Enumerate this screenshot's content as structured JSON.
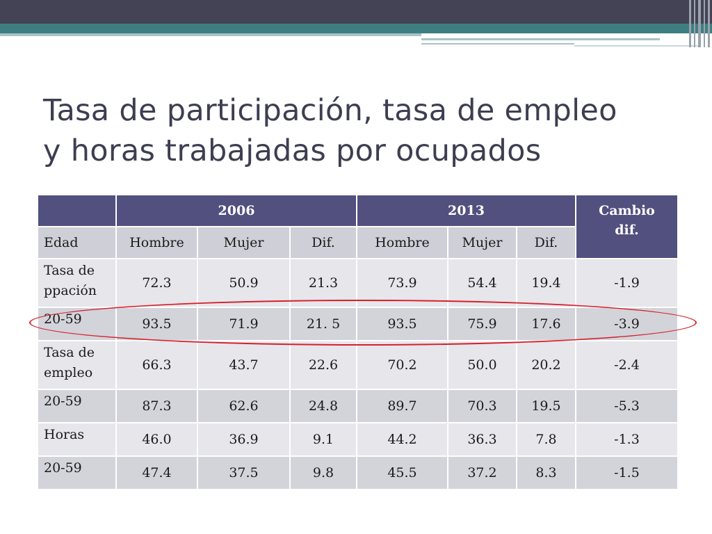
{
  "slide": {
    "title_line1": "Tasa de participación, tasa de empleo",
    "title_line2": "y horas trabajadas por ocupados"
  },
  "table": {
    "year_a": "2006",
    "year_b": "2013",
    "cambio_line1": "Cambio",
    "cambio_line2": "dif.",
    "sub": [
      "Edad",
      "Hombre",
      "Mujer",
      "Dif.",
      "Hombre",
      "Mujer",
      "Dif."
    ],
    "rows": [
      {
        "label_line1": "Tasa de",
        "label_line2": "ppación",
        "values": [
          "72.3",
          "50.9",
          "21.3",
          "73.9",
          "54.4",
          "19.4",
          "-1.9"
        ]
      },
      {
        "label_line1": "20-59",
        "label_line2": "",
        "values": [
          "93.5",
          "71.9",
          "21. 5",
          "93.5",
          "75.9",
          "17.6",
          "-3.9"
        ]
      },
      {
        "label_line1": "Tasa de",
        "label_line2": "empleo",
        "values": [
          "66.3",
          "43.7",
          "22.6",
          "70.2",
          "50.0",
          "20.2",
          "-2.4"
        ]
      },
      {
        "label_line1": "20-59",
        "label_line2": "",
        "values": [
          "87.3",
          "62.6",
          "24.8",
          "89.7",
          "70.3",
          "19.5",
          "-5.3"
        ]
      },
      {
        "label_line1": "Horas",
        "label_line2": "",
        "values": [
          "46.0",
          "36.9",
          "9.1",
          "44.2",
          "36.3",
          "7.8",
          "-1.3"
        ]
      },
      {
        "label_line1": "20-59",
        "label_line2": "",
        "values": [
          "47.4",
          "37.5",
          "9.8",
          "45.5",
          "37.2",
          "8.3",
          "-1.5"
        ]
      }
    ]
  },
  "colors": {
    "header": "#51507e",
    "annotation": "#d6202a",
    "title": "#3e3e52"
  }
}
